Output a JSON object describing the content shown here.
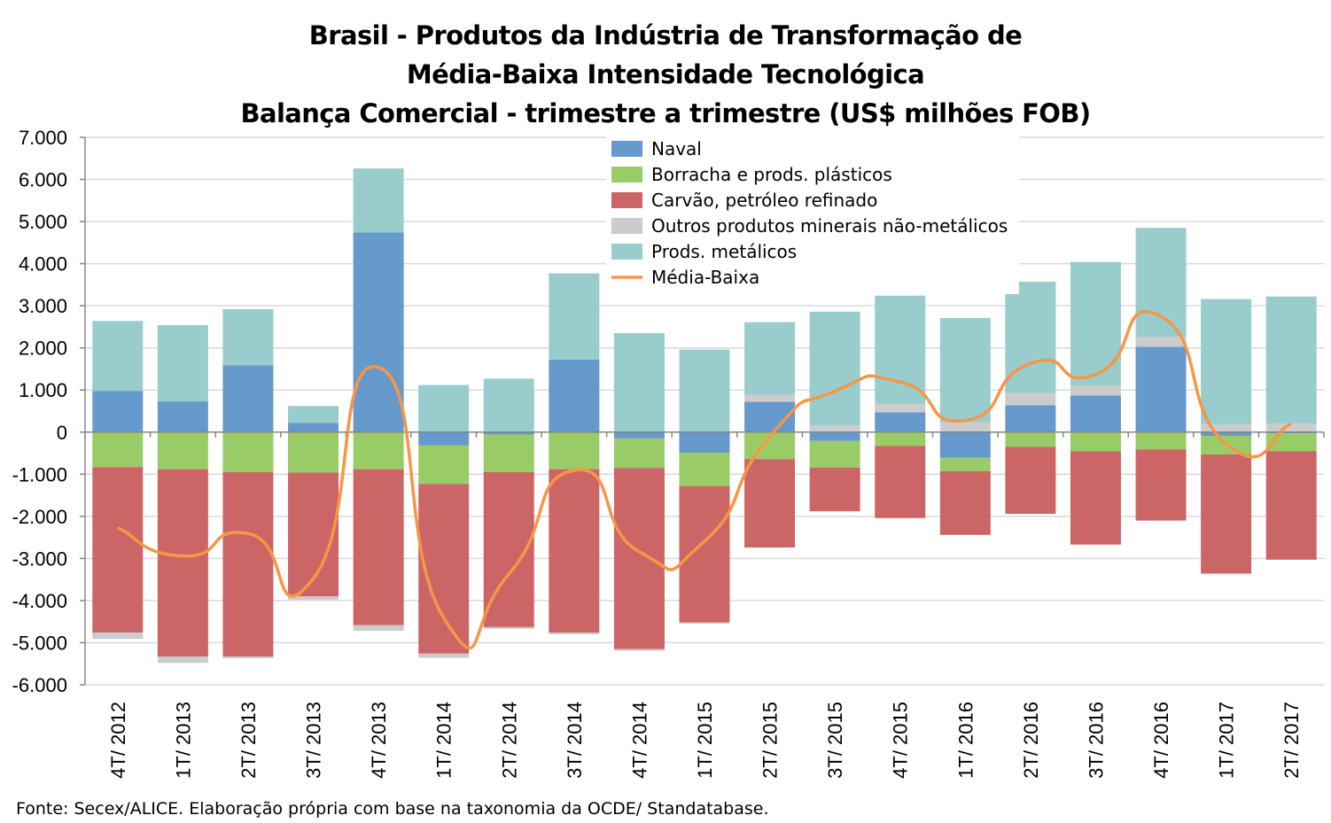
{
  "title_lines": [
    "Brasil - Produtos da Indústria de Transformação de",
    "Média-Baixa Intensidade Tecnológica",
    "Balança Comercial - trimestre a trimestre (US$ milhões FOB)"
  ],
  "source": "Fonte: Secex/ALICE. Elaboração própria com base na taxonomia da OCDE/ Standatabase.",
  "chart_data": {
    "type": "bar",
    "stacked": true,
    "title": "Brasil - Produtos da Indústria de Transformação de Média-Baixa Intensidade Tecnológica Balança Comercial - trimestre a trimestre (US$ milhões FOB)",
    "ylim": [
      -6000,
      7000
    ],
    "yticks": [
      7000,
      6000,
      5000,
      4000,
      3000,
      2000,
      1000,
      0,
      -1000,
      -2000,
      -3000,
      -4000,
      -5000,
      -6000
    ],
    "ytick_labels": [
      "7.000",
      "6.000",
      "5.000",
      "4.000",
      "3.000",
      "2.000",
      "1.000",
      "0",
      "-1.000",
      "-2.000",
      "-3.000",
      "-4.000",
      "-5.000",
      "-6.000"
    ],
    "grid": true,
    "legend_position": "top-center",
    "categories": [
      "4T/ 2012",
      "1T/ 2013",
      "2T/ 2013",
      "3T/ 2013",
      "4T/ 2013",
      "1T/ 2014",
      "2T/ 2014",
      "3T/ 2014",
      "4T/ 2014",
      "1T/ 2015",
      "2T/ 2015",
      "3T/ 2015",
      "4T/ 2015",
      "1T/ 2016",
      "2T/ 2016",
      "3T/ 2016",
      "4T/ 2016",
      "1T/ 2017",
      "2T/ 2017"
    ],
    "series": [
      {
        "name": "Naval",
        "color": "#6699cc",
        "values": [
          980,
          730,
          1590,
          220,
          4740,
          -310,
          -60,
          1720,
          -150,
          -490,
          720,
          -210,
          470,
          -610,
          640,
          870,
          2030,
          -90,
          -30
        ]
      },
      {
        "name": "Borracha e prods. plásticos",
        "color": "#99cc66",
        "values": [
          -830,
          -880,
          -950,
          -960,
          -880,
          -920,
          -890,
          -880,
          -700,
          -790,
          -640,
          -630,
          -330,
          -320,
          -350,
          -450,
          -410,
          -440,
          -420
        ]
      },
      {
        "name": "Carvão, petróleo refinado",
        "color": "#cc6666",
        "values": [
          -3930,
          -4450,
          -4380,
          -2940,
          -3700,
          -4030,
          -3680,
          -3880,
          -4300,
          -3240,
          -2100,
          -1040,
          -1710,
          -1510,
          -1590,
          -2220,
          -1690,
          -2830,
          -2580
        ]
      },
      {
        "name": "Outros produtos minerais não-metálicos",
        "color": "#cccccc",
        "values": [
          -150,
          -150,
          -40,
          -80,
          -140,
          -100,
          -40,
          -40,
          -40,
          -30,
          170,
          160,
          200,
          230,
          290,
          240,
          230,
          190,
          200
        ]
      },
      {
        "name": "Prods. metálicos",
        "color": "#99cccc",
        "values": [
          1660,
          1810,
          1330,
          400,
          1520,
          1120,
          1270,
          2050,
          2350,
          1960,
          1720,
          2700,
          2570,
          2480,
          2640,
          2930,
          2590,
          2970,
          3020
        ]
      },
      {
        "name": "Média-Baixa",
        "type": "line",
        "color": "#f79646",
        "values": [
          -2270,
          -2940,
          -2410,
          -3480,
          1540,
          -4410,
          -3370,
          -910,
          -2840,
          -2590,
          -110,
          970,
          1190,
          280,
          1630,
          1370,
          2750,
          -280,
          190
        ]
      }
    ]
  }
}
